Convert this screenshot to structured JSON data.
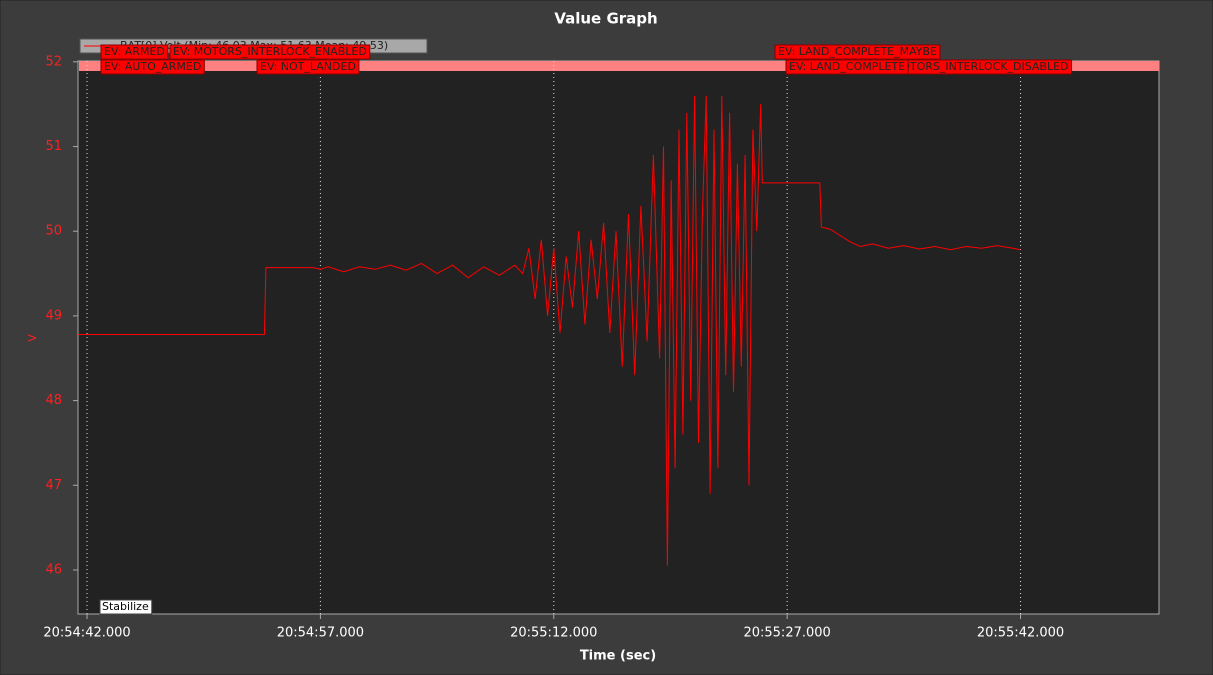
{
  "chart_data": {
    "type": "line",
    "title": "Value Graph",
    "x_label": "Time (sec)",
    "y_label": "V",
    "xlim": [
      75281.42,
      75350.9
    ],
    "ylim": [
      45.48,
      52.01
    ],
    "xticks": [
      {
        "value": 75282,
        "label": "20:54:42.000"
      },
      {
        "value": 75297,
        "label": "20:54:57.000"
      },
      {
        "value": 75312,
        "label": "20:55:12.000"
      },
      {
        "value": 75327,
        "label": "20:55:27.000"
      },
      {
        "value": 75342,
        "label": "20:55:42.000"
      }
    ],
    "yticks": [
      46,
      47,
      48,
      49,
      50,
      51,
      52
    ],
    "grid": true,
    "series": [
      {
        "name": "BAT[0].Volt (Min: 46,03 Max: 51,63 Mean: 49,53)",
        "color": "#ff0000",
        "x": [
          75281.42,
          75293.4,
          75293.5,
          75296.5,
          75297.0,
          75297.5,
          75298.5,
          75299.5,
          75300.5,
          75301.5,
          75302.5,
          75303.5,
          75304.5,
          75305.5,
          75306.5,
          75307.5,
          75308.5,
          75309.5,
          75310.0,
          75310.4,
          75310.8,
          75311.2,
          75311.6,
          75312.0,
          75312.4,
          75312.8,
          75313.2,
          75313.6,
          75314.0,
          75314.4,
          75314.8,
          75315.2,
          75315.6,
          75316.0,
          75316.4,
          75316.8,
          75317.2,
          75317.6,
          75318.0,
          75318.4,
          75318.8,
          75319.05,
          75319.3,
          75319.55,
          75319.8,
          75320.05,
          75320.3,
          75320.55,
          75320.8,
          75321.05,
          75321.3,
          75321.55,
          75321.8,
          75322.05,
          75322.3,
          75322.55,
          75322.8,
          75323.05,
          75323.3,
          75323.55,
          75323.8,
          75324.05,
          75324.3,
          75324.55,
          75324.8,
          75325.05,
          75325.3,
          75325.4,
          75329.1,
          75329.2,
          75329.8,
          75330.4,
          75331.0,
          75331.7,
          75332.5,
          75333.5,
          75334.5,
          75335.5,
          75336.5,
          75337.5,
          75338.5,
          75339.5,
          75340.5,
          75341.5,
          75342.0
        ],
        "values": [
          48.78,
          48.78,
          49.57,
          49.57,
          49.55,
          49.58,
          49.52,
          49.58,
          49.55,
          49.6,
          49.54,
          49.62,
          49.5,
          49.6,
          49.45,
          49.58,
          49.48,
          49.6,
          49.5,
          49.8,
          49.2,
          49.9,
          49.0,
          49.8,
          48.8,
          49.7,
          49.1,
          50.0,
          48.9,
          49.9,
          49.2,
          50.1,
          48.8,
          50.0,
          48.4,
          50.2,
          48.3,
          50.3,
          48.7,
          50.9,
          48.5,
          51.0,
          46.05,
          50.6,
          47.2,
          51.2,
          47.6,
          51.4,
          48.0,
          51.6,
          47.5,
          50.2,
          51.6,
          46.9,
          51.2,
          47.2,
          51.6,
          48.3,
          51.4,
          48.1,
          50.8,
          48.4,
          50.9,
          47.0,
          51.2,
          50.0,
          51.5,
          50.57,
          50.57,
          50.05,
          50.02,
          49.95,
          49.88,
          49.82,
          49.85,
          49.8,
          49.83,
          49.79,
          49.82,
          49.78,
          49.82,
          49.8,
          49.83,
          49.8,
          49.78
        ]
      }
    ],
    "annotations": [
      "EV: ARMED",
      "EV: MOTORS_INTERLOCK_ENABLED",
      "EV: AUTO_ARMED",
      "EV: NOT_LANDED",
      "EV: LAND_COMPLETE_MAYBE",
      "EV: MOTORS_INTERLOCK_DISABLED",
      "EV: LAND_COMPLETE"
    ],
    "mode_label": "Stabilize"
  }
}
